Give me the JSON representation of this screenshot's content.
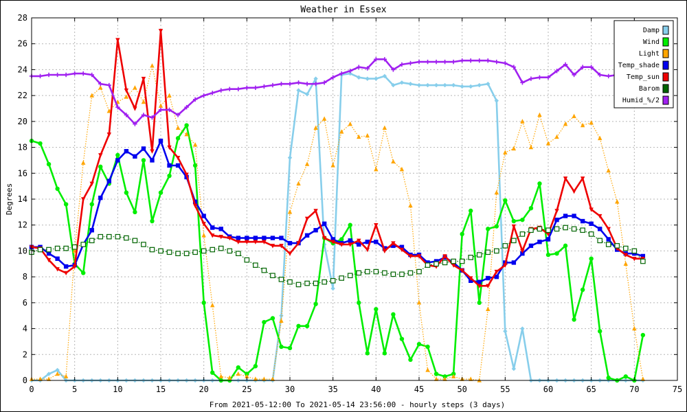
{
  "chart_data": {
    "type": "line",
    "title": "Weather in Essex",
    "xlabel": "From 2021-05-12:00 To 2021-05-14 23:56:00 - hourly steps (3 days)",
    "ylabel": "Degrees",
    "xlim": [
      0,
      75
    ],
    "ylim": [
      0,
      28
    ],
    "xticks": [
      0,
      5,
      10,
      15,
      20,
      25,
      30,
      35,
      40,
      45,
      50,
      55,
      60,
      65,
      70,
      75
    ],
    "yticks": [
      0,
      2,
      4,
      6,
      8,
      10,
      12,
      14,
      16,
      18,
      20,
      22,
      24,
      26,
      28
    ],
    "grid": true,
    "legend_position": "top-right",
    "series": [
      {
        "name": "Damp",
        "color": "#87ceeb",
        "marker": "diamond",
        "dashed": false,
        "x": [
          0,
          1,
          2,
          3,
          4,
          5,
          6,
          7,
          8,
          9,
          10,
          11,
          12,
          13,
          14,
          15,
          16,
          17,
          18,
          19,
          20,
          21,
          22,
          23,
          24,
          25,
          26,
          27,
          28,
          29,
          30,
          31,
          32,
          33,
          34,
          35,
          36,
          37,
          38,
          39,
          40,
          41,
          42,
          43,
          44,
          45,
          46,
          47,
          48,
          49,
          50,
          51,
          52,
          53,
          54,
          55,
          56,
          57,
          58,
          59,
          60,
          61,
          62,
          63,
          64,
          65,
          66,
          67,
          68,
          69,
          70,
          71
        ],
        "values": [
          0,
          0,
          0.5,
          0.8,
          0,
          0,
          0,
          0,
          0,
          0,
          0,
          0,
          0,
          0,
          0,
          0,
          0,
          0,
          0,
          0,
          0,
          0,
          0,
          0,
          0,
          0,
          0,
          0,
          0,
          5,
          17.2,
          22.4,
          22.1,
          23.3,
          10.5,
          7.1,
          23.6,
          23.7,
          23.4,
          23.3,
          23.3,
          23.5,
          22.8,
          23.0,
          22.9,
          22.8,
          22.8,
          22.8,
          22.8,
          22.8,
          22.7,
          22.7,
          22.8,
          22.9,
          21.6,
          3.8,
          0.9,
          4.0,
          0,
          0,
          0,
          0,
          0,
          0,
          0,
          0,
          0,
          0,
          0,
          0,
          0,
          0
        ]
      },
      {
        "name": "Wind",
        "color": "#00ee00",
        "marker": "circle",
        "dashed": false,
        "x": [
          0,
          1,
          2,
          3,
          4,
          5,
          6,
          7,
          8,
          9,
          10,
          11,
          12,
          13,
          14,
          15,
          16,
          17,
          18,
          19,
          20,
          21,
          22,
          23,
          24,
          25,
          26,
          27,
          28,
          29,
          30,
          31,
          32,
          33,
          34,
          35,
          36,
          37,
          38,
          39,
          40,
          41,
          42,
          43,
          44,
          45,
          46,
          47,
          48,
          49,
          50,
          51,
          52,
          53,
          54,
          55,
          56,
          57,
          58,
          59,
          60,
          61,
          62,
          63,
          64,
          65,
          66,
          67,
          68,
          69,
          70,
          71
        ],
        "values": [
          18.5,
          18.3,
          16.7,
          14.8,
          13.6,
          9.0,
          8.3,
          13.6,
          16.5,
          15.2,
          17.4,
          14.5,
          13.0,
          17.0,
          12.3,
          14.5,
          15.8,
          18.7,
          19.7,
          16.6,
          6.0,
          0.6,
          0,
          0,
          1.0,
          0.5,
          1.1,
          4.5,
          4.8,
          2.6,
          2.5,
          4.2,
          4.2,
          5.9,
          11.0,
          10.6,
          10.9,
          12.0,
          6.0,
          2.1,
          5.5,
          2.1,
          5.1,
          3.2,
          1.6,
          2.8,
          2.6,
          0.5,
          0.3,
          0.5,
          11.3,
          13.1,
          6.0,
          11.7,
          11.9,
          13.9,
          12.3,
          12.4,
          13.3,
          15.2,
          9.7,
          9.8,
          10.4,
          4.7,
          7.0,
          9.4,
          3.8,
          0.2,
          0,
          0.3,
          0,
          3.5
        ]
      },
      {
        "name": "Light",
        "color": "#ffa500",
        "marker": "triangle-up",
        "dashed": true,
        "x": [
          0,
          1,
          2,
          3,
          4,
          5,
          6,
          7,
          8,
          9,
          10,
          11,
          12,
          13,
          14,
          15,
          16,
          17,
          18,
          19,
          20,
          21,
          22,
          23,
          24,
          25,
          26,
          27,
          28,
          29,
          30,
          31,
          32,
          33,
          34,
          35,
          36,
          37,
          38,
          39,
          40,
          41,
          42,
          43,
          44,
          45,
          46,
          47,
          48,
          49,
          50,
          51,
          52,
          53,
          54,
          55,
          56,
          57,
          58,
          59,
          60,
          61,
          62,
          63,
          64,
          65,
          66,
          67,
          68,
          69,
          70,
          71
        ],
        "values": [
          0.1,
          0.1,
          0.1,
          0.5,
          0.3,
          10.0,
          16.8,
          22.0,
          22.6,
          20.8,
          21.5,
          21.9,
          22.6,
          21.5,
          24.3,
          21.2,
          22.0,
          19.5,
          19.0,
          18.2,
          11.2,
          5.8,
          0.3,
          0.2,
          0.5,
          0.3,
          0.1,
          0.1,
          0.1,
          4.6,
          13.0,
          15.2,
          16.7,
          19.5,
          20.2,
          16.6,
          19.2,
          19.8,
          18.8,
          18.9,
          16.3,
          19.5,
          16.9,
          16.3,
          13.5,
          6.0,
          0.8,
          0.1,
          0.1,
          0.3,
          0.1,
          0.1,
          0,
          5.5,
          14.5,
          17.6,
          17.9,
          20.0,
          18.0,
          20.5,
          18.3,
          18.8,
          19.8,
          20.4,
          19.7,
          19.9,
          18.7,
          16.2,
          13.8,
          9.0,
          4.0,
          0.1
        ]
      },
      {
        "name": "Temp_shade",
        "color": "#0000ee",
        "marker": "square",
        "dashed": false,
        "x": [
          0,
          1,
          2,
          3,
          4,
          5,
          6,
          7,
          8,
          9,
          10,
          11,
          12,
          13,
          14,
          15,
          16,
          17,
          18,
          19,
          20,
          21,
          22,
          23,
          24,
          25,
          26,
          27,
          28,
          29,
          30,
          31,
          32,
          33,
          34,
          35,
          36,
          37,
          38,
          39,
          40,
          41,
          42,
          43,
          44,
          45,
          46,
          47,
          48,
          49,
          50,
          51,
          52,
          53,
          54,
          55,
          56,
          57,
          58,
          59,
          60,
          61,
          62,
          63,
          64,
          65,
          66,
          67,
          68,
          69,
          70,
          71
        ],
        "values": [
          10.3,
          10.3,
          9.8,
          9.4,
          8.8,
          8.9,
          10.5,
          11.6,
          14.1,
          15.4,
          17.0,
          17.7,
          17.3,
          17.9,
          17.0,
          18.5,
          16.6,
          16.6,
          15.7,
          13.8,
          12.7,
          11.8,
          11.7,
          11.1,
          11.0,
          11.0,
          11.0,
          11.0,
          11.0,
          11.0,
          10.6,
          10.6,
          11.2,
          11.6,
          12.1,
          10.9,
          10.6,
          10.8,
          10.5,
          10.7,
          10.7,
          10.2,
          10.4,
          10.3,
          9.7,
          9.7,
          9.1,
          9.2,
          9.5,
          9.1,
          8.5,
          7.7,
          7.6,
          7.9,
          8.0,
          9.1,
          9.1,
          9.8,
          10.4,
          10.7,
          10.9,
          12.4,
          12.7,
          12.7,
          12.3,
          12.1,
          11.7,
          10.9,
          10.1,
          9.8,
          9.8,
          9.6
        ]
      },
      {
        "name": "Temp_sun",
        "color": "#ee0000",
        "marker": "triangle-down",
        "dashed": false,
        "x": [
          0,
          1,
          2,
          3,
          4,
          5,
          6,
          7,
          8,
          9,
          10,
          11,
          12,
          13,
          14,
          15,
          16,
          17,
          18,
          19,
          20,
          21,
          22,
          23,
          24,
          25,
          26,
          27,
          28,
          29,
          30,
          31,
          32,
          33,
          34,
          35,
          36,
          37,
          38,
          39,
          40,
          41,
          42,
          43,
          44,
          45,
          46,
          47,
          48,
          49,
          50,
          51,
          52,
          53,
          54,
          55,
          56,
          57,
          58,
          59,
          60,
          61,
          62,
          63,
          64,
          65,
          66,
          67,
          68,
          69,
          70,
          71
        ],
        "values": [
          10.3,
          10.2,
          9.3,
          8.6,
          8.3,
          8.8,
          14.0,
          15.2,
          17.4,
          19.0,
          26.3,
          22.4,
          21.0,
          23.3,
          17.7,
          27.0,
          18.0,
          17.2,
          15.9,
          13.5,
          12.1,
          11.2,
          11.1,
          11.0,
          10.7,
          10.7,
          10.7,
          10.7,
          10.4,
          10.4,
          9.8,
          10.6,
          12.5,
          13.1,
          11.0,
          10.7,
          10.5,
          10.5,
          10.8,
          10.1,
          12.0,
          10.0,
          10.6,
          10.1,
          9.6,
          9.6,
          8.9,
          8.8,
          9.6,
          8.9,
          8.5,
          7.9,
          7.3,
          7.3,
          8.4,
          8.9,
          11.9,
          10.0,
          11.7,
          11.8,
          11.3,
          13.1,
          15.6,
          14.6,
          15.6,
          13.2,
          12.7,
          11.7,
          10.2,
          9.7,
          9.4,
          9.4
        ]
      },
      {
        "name": "Barom",
        "color": "#006400",
        "marker": "open-square",
        "dashed": true,
        "x": [
          0,
          1,
          2,
          3,
          4,
          5,
          6,
          7,
          8,
          9,
          10,
          11,
          12,
          13,
          14,
          15,
          16,
          17,
          18,
          19,
          20,
          21,
          22,
          23,
          24,
          25,
          26,
          27,
          28,
          29,
          30,
          31,
          32,
          33,
          34,
          35,
          36,
          37,
          38,
          39,
          40,
          41,
          42,
          43,
          44,
          45,
          46,
          47,
          48,
          49,
          50,
          51,
          52,
          53,
          54,
          55,
          56,
          57,
          58,
          59,
          60,
          61,
          62,
          63,
          64,
          65,
          66,
          67,
          68,
          69,
          70,
          71
        ],
        "values": [
          9.9,
          10.1,
          10.1,
          10.2,
          10.2,
          10.3,
          10.5,
          10.8,
          11.1,
          11.1,
          11.1,
          11.0,
          10.8,
          10.5,
          10.1,
          10.0,
          9.9,
          9.8,
          9.8,
          9.9,
          10.0,
          10.1,
          10.2,
          10.0,
          9.8,
          9.3,
          8.9,
          8.5,
          8.1,
          7.8,
          7.6,
          7.4,
          7.5,
          7.5,
          7.6,
          7.7,
          7.9,
          8.1,
          8.3,
          8.4,
          8.4,
          8.3,
          8.2,
          8.2,
          8.3,
          8.4,
          8.9,
          9.0,
          9.1,
          9.2,
          9.2,
          9.5,
          9.7,
          9.9,
          10.0,
          10.4,
          10.8,
          11.3,
          11.6,
          11.7,
          11.6,
          11.7,
          11.8,
          11.7,
          11.6,
          11.3,
          10.8,
          10.5,
          10.4,
          10.2,
          10.0,
          9.2
        ]
      },
      {
        "name": "Humid_%/2",
        "color": "#a020f0",
        "marker": "plus",
        "dashed": false,
        "x": [
          0,
          1,
          2,
          3,
          4,
          5,
          6,
          7,
          8,
          9,
          10,
          11,
          12,
          13,
          14,
          15,
          16,
          17,
          18,
          19,
          20,
          21,
          22,
          23,
          24,
          25,
          26,
          27,
          28,
          29,
          30,
          31,
          32,
          33,
          34,
          35,
          36,
          37,
          38,
          39,
          40,
          41,
          42,
          43,
          44,
          45,
          46,
          47,
          48,
          49,
          50,
          51,
          52,
          53,
          54,
          55,
          56,
          57,
          58,
          59,
          60,
          61,
          62,
          63,
          64,
          65,
          66,
          67,
          68,
          69,
          70,
          71
        ],
        "values": [
          23.5,
          23.5,
          23.6,
          23.6,
          23.6,
          23.7,
          23.7,
          23.6,
          22.9,
          22.8,
          21.1,
          20.5,
          19.8,
          20.5,
          20.3,
          20.9,
          20.9,
          20.5,
          21.1,
          21.7,
          22.0,
          22.2,
          22.4,
          22.5,
          22.5,
          22.6,
          22.6,
          22.7,
          22.8,
          22.9,
          22.9,
          23.0,
          22.9,
          22.9,
          23.0,
          23.4,
          23.7,
          23.9,
          24.2,
          24.1,
          24.8,
          24.8,
          24.0,
          24.4,
          24.5,
          24.6,
          24.6,
          24.6,
          24.6,
          24.6,
          24.7,
          24.7,
          24.7,
          24.7,
          24.6,
          24.5,
          24.2,
          23.0,
          23.3,
          23.4,
          23.4,
          23.9,
          24.4,
          23.6,
          24.2,
          24.2,
          23.6,
          23.5,
          23.6,
          23.6,
          23.6,
          23.6
        ]
      }
    ]
  }
}
